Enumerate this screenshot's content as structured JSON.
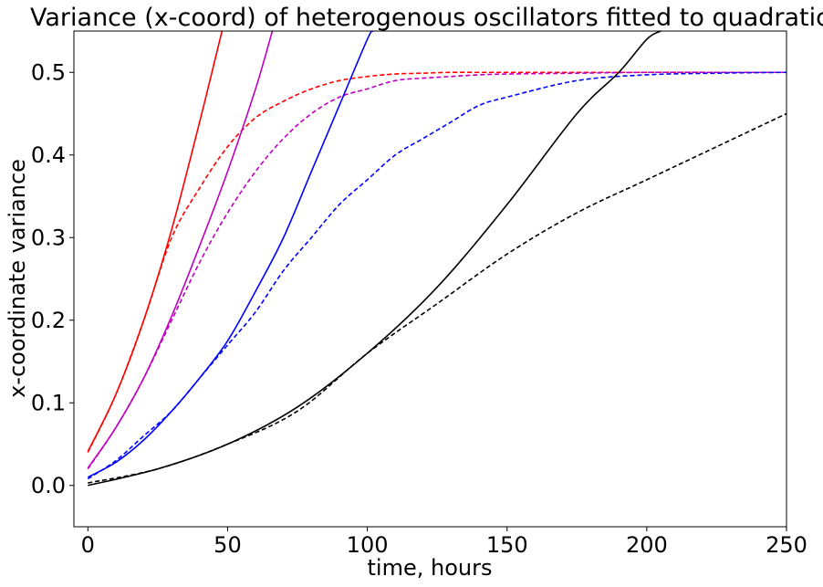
{
  "chart_data": {
    "type": "line",
    "title": "Variance (x-coord) of heterogenous oscillators fitted to quadratic",
    "xlabel": "time, hours",
    "ylabel": "x-coordinate variance",
    "xlim": [
      -5,
      250
    ],
    "ylim": [
      -0.05,
      0.55
    ],
    "xticks": [
      0,
      50,
      100,
      150,
      200,
      250
    ],
    "xtick_labels": [
      "0",
      "50",
      "100",
      "150",
      "200",
      "250"
    ],
    "yticks": [
      0.0,
      0.1,
      0.2,
      0.3,
      0.4,
      0.5
    ],
    "ytick_labels": [
      "0.0",
      "0.1",
      "0.2",
      "0.3",
      "0.4",
      "0.5"
    ],
    "grid": false,
    "legend": "none",
    "series": [
      {
        "color": "#ff0000",
        "style": "dashed",
        "x": [
          0,
          10,
          20,
          30,
          40,
          50,
          60,
          70,
          80,
          90,
          100,
          110,
          120,
          130,
          140,
          150,
          175,
          200,
          225,
          250
        ],
        "y": [
          0.04,
          0.11,
          0.2,
          0.3,
          0.36,
          0.41,
          0.445,
          0.465,
          0.48,
          0.49,
          0.495,
          0.498,
          0.499,
          0.5,
          0.5,
          0.5,
          0.5,
          0.5,
          0.5,
          0.5
        ]
      },
      {
        "color": "#ff0000",
        "style": "solid",
        "x": [
          0,
          10,
          20,
          30,
          40,
          48
        ],
        "y": [
          0.041,
          0.11,
          0.2,
          0.31,
          0.44,
          0.55
        ]
      },
      {
        "color": "#bf00bf",
        "style": "dashed",
        "x": [
          0,
          10,
          20,
          30,
          40,
          50,
          60,
          70,
          80,
          90,
          100,
          110,
          120,
          130,
          140,
          150,
          175,
          200,
          225,
          250
        ],
        "y": [
          0.02,
          0.07,
          0.13,
          0.2,
          0.27,
          0.33,
          0.38,
          0.42,
          0.45,
          0.47,
          0.48,
          0.49,
          0.493,
          0.495,
          0.497,
          0.498,
          0.499,
          0.5,
          0.5,
          0.5
        ]
      },
      {
        "color": "#bf00bf",
        "style": "solid",
        "x": [
          0,
          10,
          20,
          30,
          40,
          50,
          60,
          66
        ],
        "y": [
          0.021,
          0.07,
          0.13,
          0.205,
          0.29,
          0.38,
          0.48,
          0.55
        ]
      },
      {
        "color": "#0000ff",
        "style": "dashed",
        "x": [
          0,
          10,
          20,
          30,
          40,
          50,
          60,
          70,
          80,
          90,
          100,
          110,
          120,
          130,
          140,
          150,
          175,
          200,
          225,
          250
        ],
        "y": [
          0.008,
          0.03,
          0.06,
          0.09,
          0.13,
          0.17,
          0.21,
          0.26,
          0.3,
          0.34,
          0.37,
          0.4,
          0.42,
          0.44,
          0.46,
          0.47,
          0.49,
          0.497,
          0.499,
          0.5
        ]
      },
      {
        "color": "#0000ff",
        "style": "solid",
        "x": [
          0,
          10,
          20,
          30,
          40,
          50,
          60,
          70,
          80,
          90,
          100,
          102
        ],
        "y": [
          0.01,
          0.028,
          0.055,
          0.09,
          0.13,
          0.175,
          0.235,
          0.3,
          0.38,
          0.46,
          0.54,
          0.55
        ]
      },
      {
        "color": "#000000",
        "style": "dashed",
        "x": [
          0,
          25,
          50,
          75,
          100,
          125,
          150,
          175,
          200,
          225,
          250
        ],
        "y": [
          0.003,
          0.02,
          0.05,
          0.09,
          0.16,
          0.22,
          0.28,
          0.33,
          0.37,
          0.41,
          0.45
        ]
      },
      {
        "color": "#000000",
        "style": "solid",
        "x": [
          0,
          25,
          50,
          75,
          100,
          125,
          150,
          175,
          190,
          200,
          205
        ],
        "y": [
          0.0,
          0.02,
          0.05,
          0.095,
          0.16,
          0.24,
          0.34,
          0.45,
          0.5,
          0.54,
          0.55
        ]
      }
    ]
  }
}
